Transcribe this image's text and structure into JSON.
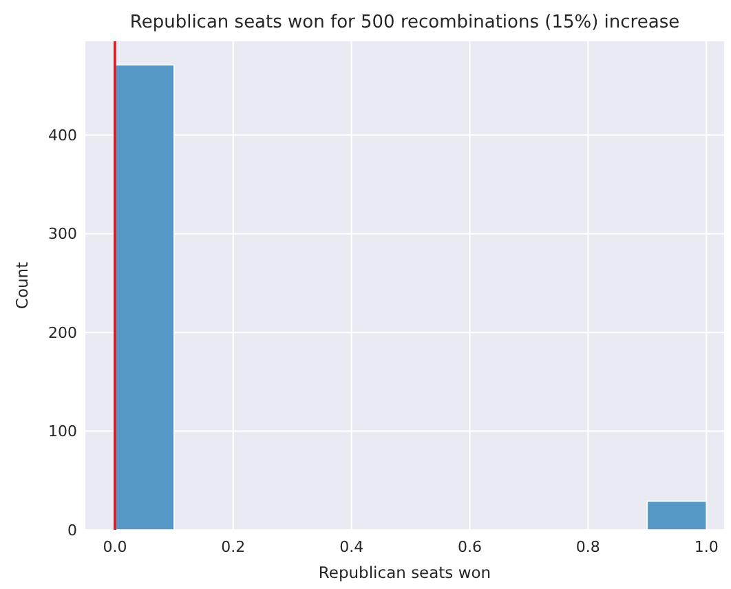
{
  "chart_data": {
    "type": "histogram",
    "title": "Republican seats won for 500 recombinations (15%) increase",
    "xlabel": "Republican seats won",
    "ylabel": "Count",
    "bins": [
      0,
      0.1,
      0.2,
      0.3,
      0.4,
      0.5,
      0.6,
      0.7,
      0.8,
      0.9,
      1.0
    ],
    "values": [
      471,
      0,
      0,
      0,
      0,
      0,
      0,
      0,
      0,
      29
    ],
    "color": "#5597c7",
    "xlim": [
      -0.05,
      1.03
    ],
    "ylim": [
      0,
      495
    ],
    "xticks": [
      {
        "value": 0,
        "label": "0.0"
      },
      {
        "value": 0.2,
        "label": "0.2"
      },
      {
        "value": 0.4,
        "label": "0.4"
      },
      {
        "value": 0.6,
        "label": "0.6"
      },
      {
        "value": 0.8,
        "label": "0.8"
      },
      {
        "value": 1,
        "label": "1.0"
      }
    ],
    "yticks": [
      0,
      100,
      200,
      300,
      400
    ],
    "grid": true,
    "ref_lines": [
      {
        "axis": "x",
        "value": 0,
        "color": "#e8151b"
      }
    ]
  }
}
